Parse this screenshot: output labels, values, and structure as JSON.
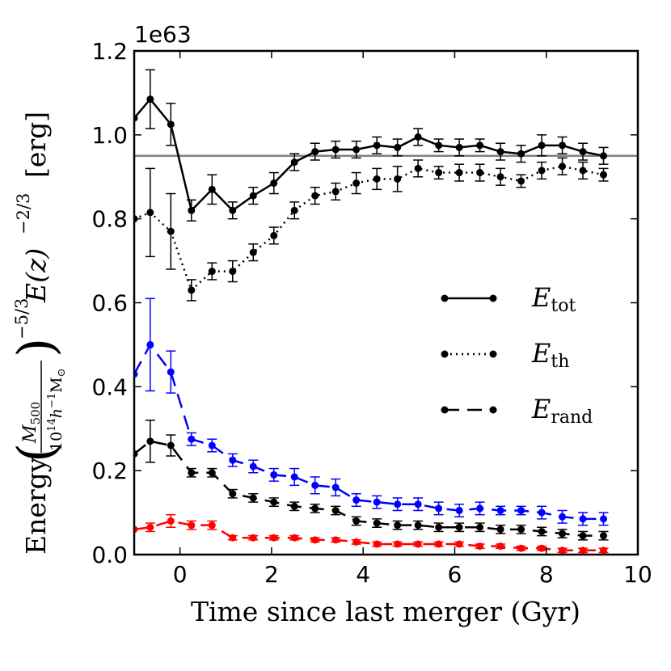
{
  "chart_data": {
    "type": "line",
    "title": "",
    "xlabel": "Time since last merger (Gyr)",
    "ylabel": {
      "word": "Energy",
      "frac_num": "M",
      "frac_num_sub": "500",
      "frac_den_base": "10",
      "frac_den_exp": "14",
      "frac_den_rest": "h",
      "frac_den_rest_exp": "−1",
      "frac_den_unit": "M",
      "frac_den_unit_sub": "⊙",
      "power1": "−5/3",
      "ez": "E(z)",
      "power2": "−2/3",
      "unit": "[erg]"
    },
    "offset_text": "1e63",
    "xlim": [
      -1,
      10
    ],
    "ylim": [
      0.0,
      1.2
    ],
    "xticks": [
      0,
      2,
      4,
      6,
      8,
      10
    ],
    "xtick_labels": [
      "0",
      "2",
      "4",
      "6",
      "8",
      "10"
    ],
    "yticks": [
      0.0,
      0.2,
      0.4,
      0.6,
      0.8,
      1.0,
      1.2
    ],
    "ytick_labels": [
      "0.0",
      "0.2",
      "0.4",
      "0.6",
      "0.8",
      "1.0",
      "1.2"
    ],
    "reference_line": {
      "y": 0.95,
      "color": "#808080"
    },
    "legend": {
      "placement": "center-right",
      "entries": [
        {
          "name": "E",
          "sub": "tot",
          "style": "solid"
        },
        {
          "name": "E",
          "sub": "th",
          "style": "dotted"
        },
        {
          "name": "E",
          "sub": "rand",
          "style": "dashed"
        }
      ]
    },
    "series": [
      {
        "name": "E_tot",
        "color": "#000000",
        "style": "solid",
        "x": [
          -1.0,
          -0.65,
          -0.2,
          0.25,
          0.7,
          1.15,
          1.6,
          2.05,
          2.5,
          2.95,
          3.4,
          3.85,
          4.3,
          4.75,
          5.2,
          5.65,
          6.1,
          6.55,
          7.0,
          7.45,
          7.9,
          8.35,
          8.8,
          9.25
        ],
        "y": [
          1.04,
          1.085,
          1.025,
          0.82,
          0.87,
          0.82,
          0.855,
          0.885,
          0.935,
          0.96,
          0.965,
          0.965,
          0.975,
          0.97,
          0.995,
          0.975,
          0.97,
          0.975,
          0.96,
          0.955,
          0.975,
          0.975,
          0.96,
          0.95
        ],
        "err": [
          null,
          0.07,
          0.05,
          0.025,
          0.035,
          0.02,
          0.02,
          0.025,
          0.02,
          0.02,
          0.02,
          0.02,
          0.02,
          0.02,
          0.02,
          0.015,
          0.02,
          0.015,
          0.02,
          0.02,
          0.025,
          0.02,
          0.02,
          0.02
        ]
      },
      {
        "name": "E_th",
        "color": "#000000",
        "style": "dotted",
        "x": [
          -1.0,
          -0.65,
          -0.2,
          0.25,
          0.7,
          1.15,
          1.6,
          2.05,
          2.5,
          2.95,
          3.4,
          3.85,
          4.3,
          4.75,
          5.2,
          5.65,
          6.1,
          6.55,
          7.0,
          7.45,
          7.9,
          8.35,
          8.8,
          9.25
        ],
        "y": [
          0.8,
          0.815,
          0.77,
          0.63,
          0.675,
          0.675,
          0.72,
          0.76,
          0.82,
          0.855,
          0.865,
          0.885,
          0.895,
          0.895,
          0.92,
          0.91,
          0.91,
          0.91,
          0.9,
          0.89,
          0.915,
          0.925,
          0.915,
          0.905
        ],
        "err": [
          null,
          0.105,
          0.09,
          0.025,
          0.02,
          0.025,
          0.02,
          0.02,
          0.02,
          0.02,
          0.02,
          0.025,
          0.025,
          0.03,
          0.02,
          0.015,
          0.02,
          0.02,
          0.02,
          0.015,
          0.02,
          0.02,
          0.02,
          0.015
        ]
      },
      {
        "name": "E_rand (blue)",
        "color": "#0000ff",
        "style": "dashed",
        "x": [
          -1.0,
          -0.65,
          -0.2,
          0.25,
          0.7,
          1.15,
          1.6,
          2.05,
          2.5,
          2.95,
          3.4,
          3.85,
          4.3,
          4.75,
          5.2,
          5.65,
          6.1,
          6.55,
          7.0,
          7.45,
          7.9,
          8.35,
          8.8,
          9.25
        ],
        "y": [
          0.43,
          0.5,
          0.435,
          0.275,
          0.26,
          0.225,
          0.21,
          0.19,
          0.185,
          0.165,
          0.16,
          0.13,
          0.125,
          0.12,
          0.12,
          0.11,
          0.105,
          0.11,
          0.105,
          0.105,
          0.1,
          0.09,
          0.085,
          0.085
        ],
        "err": [
          null,
          0.11,
          0.05,
          0.015,
          0.015,
          0.015,
          0.015,
          0.015,
          0.02,
          0.02,
          0.02,
          0.015,
          0.015,
          0.015,
          0.015,
          0.015,
          0.015,
          0.015,
          0.01,
          0.01,
          0.015,
          0.015,
          0.015,
          0.015
        ]
      },
      {
        "name": "E_rand (black)",
        "color": "#000000",
        "style": "dashed",
        "x": [
          -1.0,
          -0.65,
          -0.2,
          0.25,
          0.7,
          1.15,
          1.6,
          2.05,
          2.5,
          2.95,
          3.4,
          3.85,
          4.3,
          4.75,
          5.2,
          5.65,
          6.1,
          6.55,
          7.0,
          7.45,
          7.9,
          8.35,
          8.8,
          9.25
        ],
        "y": [
          0.24,
          0.27,
          0.26,
          0.195,
          0.195,
          0.145,
          0.135,
          0.125,
          0.115,
          0.11,
          0.105,
          0.08,
          0.075,
          0.07,
          0.07,
          0.065,
          0.065,
          0.065,
          0.06,
          0.06,
          0.055,
          0.05,
          0.045,
          0.045
        ],
        "err": [
          null,
          0.05,
          0.025,
          0.01,
          0.01,
          0.01,
          0.01,
          0.01,
          0.01,
          0.01,
          0.01,
          0.01,
          0.01,
          0.01,
          0.01,
          0.01,
          0.01,
          0.01,
          0.01,
          0.01,
          0.01,
          0.01,
          0.01,
          0.01
        ]
      },
      {
        "name": "E_rand (red)",
        "color": "#ff0000",
        "style": "dashed",
        "x": [
          -1.0,
          -0.65,
          -0.2,
          0.25,
          0.7,
          1.15,
          1.6,
          2.05,
          2.5,
          2.95,
          3.4,
          3.85,
          4.3,
          4.75,
          5.2,
          5.65,
          6.1,
          6.55,
          7.0,
          7.45,
          7.9,
          8.35,
          8.8,
          9.25
        ],
        "y": [
          0.06,
          0.065,
          0.08,
          0.07,
          0.07,
          0.04,
          0.04,
          0.04,
          0.04,
          0.035,
          0.035,
          0.03,
          0.025,
          0.025,
          0.025,
          0.025,
          0.025,
          0.02,
          0.02,
          0.015,
          0.015,
          0.01,
          0.01,
          0.01
        ],
        "err": [
          null,
          0.01,
          0.015,
          0.01,
          0.01,
          0.005,
          0.005,
          0.005,
          0.005,
          0.005,
          0.005,
          0.005,
          0.005,
          0.005,
          0.005,
          0.005,
          0.005,
          0.005,
          0.005,
          0.005,
          0.005,
          0.005,
          0.005,
          0.005
        ]
      }
    ]
  }
}
